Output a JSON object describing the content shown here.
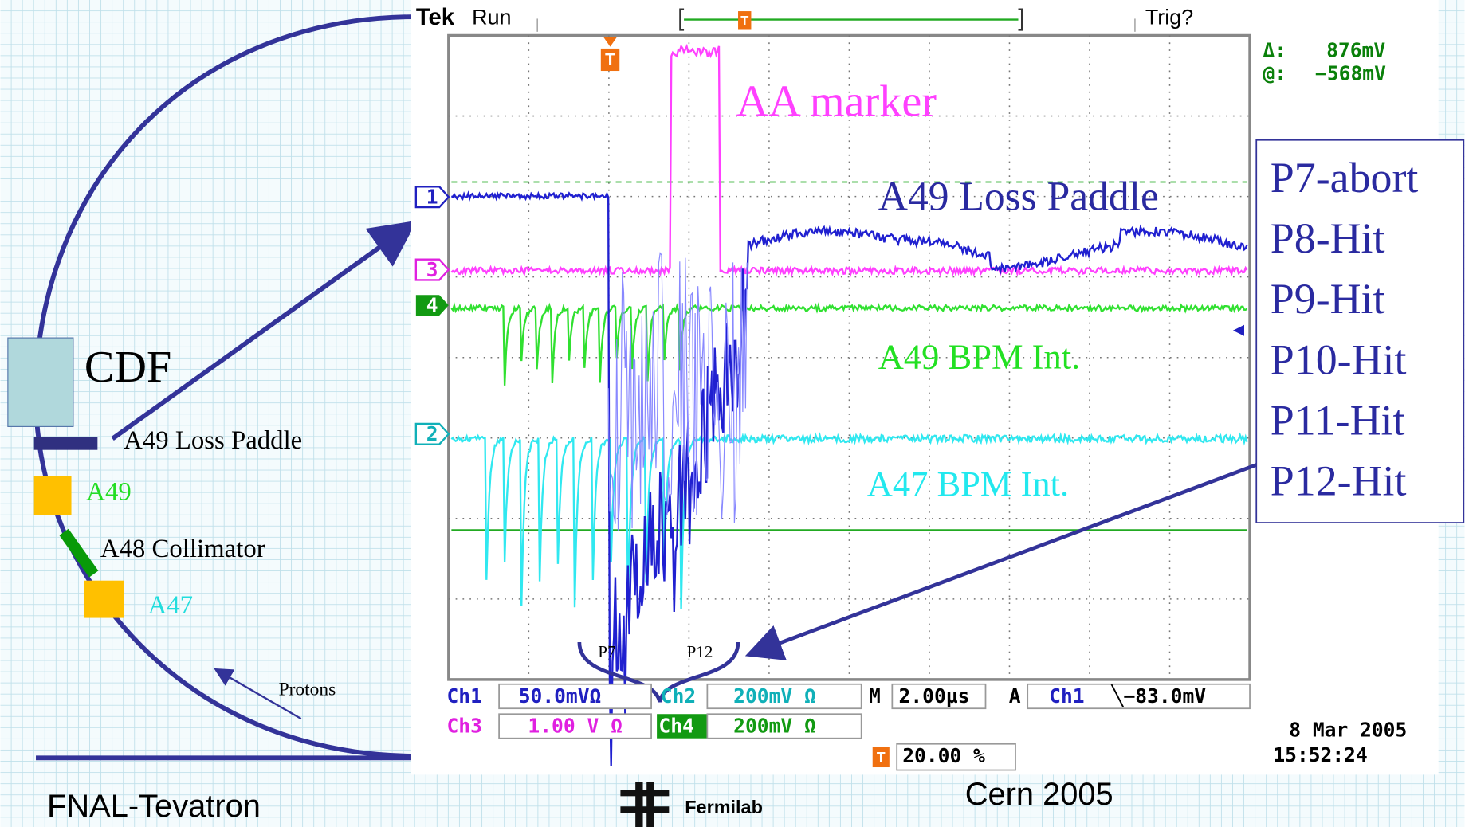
{
  "scope": {
    "brand": "Tek",
    "status": "Run",
    "trigger_state": "Trig?",
    "cursor_delta_label": "Δ:",
    "cursor_delta": "876mV",
    "cursor_at_label": "@:",
    "cursor_at": "−568mV",
    "trigger_marker": "T",
    "channel_markers": [
      "1",
      "3",
      "4",
      "2"
    ],
    "readout": {
      "ch1": "Ch1",
      "ch1_scale": "50.0mVΩ",
      "ch2": "Ch2",
      "ch2_scale": "200mV Ω",
      "timebase_label": "M",
      "timebase": "2.00µs",
      "acq_mode": "A",
      "trigger_source": "Ch1",
      "trigger_level": "╲−83.0mV",
      "ch3": "Ch3",
      "ch3_scale": "1.00 V Ω",
      "ch4": "Ch4",
      "ch4_scale": "200mV Ω"
    },
    "trigger_position": "20.00 %",
    "date": "8 Mar  2005",
    "time": "15:52:24"
  },
  "annotations": {
    "aa_marker": "AA marker",
    "a49_loss_paddle": "A49 Loss Paddle",
    "a49_bpm": "A49 BPM Int.",
    "a47_bpm": "A47 BPM Int.",
    "p7": "P7",
    "p12": "P12"
  },
  "event_list": [
    "P7-abort",
    "P8-Hit",
    "P9-Hit",
    "P10-Hit",
    "P11-Hit",
    "P12-Hit"
  ],
  "diagram": {
    "cdf": "CDF",
    "loss_paddle": "A49 Loss Paddle",
    "a49": "A49",
    "collimator": "A48 Collimator",
    "a47": "A47",
    "protons": "Protons"
  },
  "footer": {
    "left": "FNAL-Tevatron",
    "logo": "Fermilab",
    "right": "Cern 2005"
  }
}
